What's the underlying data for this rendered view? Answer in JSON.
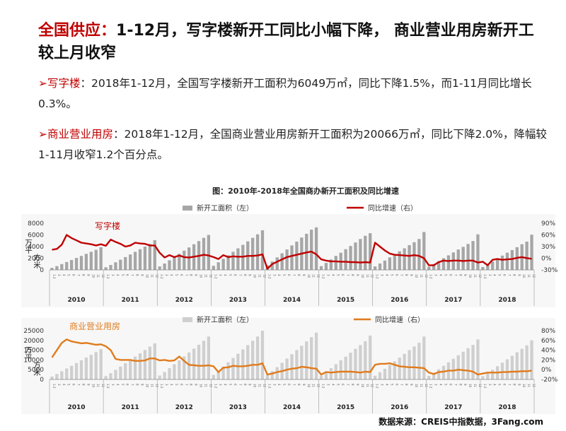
{
  "headline": {
    "part1": "全国供应：",
    "part2": "1-12月，写字楼新开工同比小幅下降，  商业营业用房新开工较上月收窄"
  },
  "para1": {
    "bullet": "➢",
    "lead": "写字楼",
    "text": "：2018年1-12月，全国写字楼新开工面积为6049万㎡，同比下降1.5%，而1-11月同比增长0.3%。"
  },
  "para2": {
    "bullet": "➢",
    "lead": "商业营业用房",
    "text": "：2018年1-12月，全国商业营业用房新开工面积为20066万㎡，同比下降2.0%，降幅较1-11月收窄1.2个百分点。"
  },
  "figure_title": "图：2010年-2018年全国商办新开工面积及同比增速",
  "source": "数据来源：CREIS中指数据，3Fang.com",
  "colors": {
    "red": "#c00000",
    "orange": "#e07b1c",
    "bar1": "#a6a6a6",
    "bar2": "#cfcfcf"
  },
  "chart_data": [
    {
      "type": "bar+line",
      "annotation": "写字楼",
      "ylabel": "万平方米",
      "y_left_ticks": [
        "8000",
        "6000",
        "4000",
        "2000",
        "0"
      ],
      "y_left_range": [
        0,
        8000
      ],
      "y_right_ticks": [
        "90%",
        "60%",
        "30%",
        "0%",
        "-30%"
      ],
      "y_right_range": [
        -30,
        90
      ],
      "legend": [
        "新开工面积（左）",
        "同比增速（右）"
      ],
      "years": [
        "2010",
        "2011",
        "2012",
        "2013",
        "2014",
        "2015",
        "2016",
        "2017",
        "2018"
      ],
      "month_labels": [
        "1-2",
        "3",
        "4",
        "5",
        "6",
        "7",
        "8",
        "9",
        "10",
        "11",
        "12"
      ],
      "series": [
        {
          "name": "新开工面积（左）",
          "kind": "bar",
          "values": [
            [
              350,
              650,
              1000,
              1350,
              1700,
              2050,
              2400,
              2750,
              3100,
              3450,
              3900
            ],
            [
              450,
              850,
              1300,
              1750,
              2200,
              2650,
              3100,
              3550,
              4000,
              4450,
              5100
            ],
            [
              600,
              1100,
              1650,
              2200,
              2750,
              3300,
              3850,
              4400,
              4950,
              5500,
              6000
            ],
            [
              700,
              1300,
              1900,
              2500,
              3100,
              3700,
              4300,
              4900,
              5500,
              6100,
              6800
            ],
            [
              800,
              1450,
              2150,
              2850,
              3500,
              4200,
              4850,
              5550,
              6200,
              6900,
              7300
            ],
            [
              650,
              1200,
              1800,
              2400,
              2950,
              3550,
              4100,
              4700,
              5300,
              5850,
              6300
            ],
            [
              600,
              1100,
              1600,
              2150,
              2650,
              3200,
              3700,
              4250,
              4750,
              5300,
              6500
            ],
            [
              550,
              1000,
              1500,
              2000,
              2500,
              3000,
              3500,
              3950,
              4450,
              4950,
              6100
            ],
            [
              500,
              950,
              1450,
              1950,
              2450,
              2950,
              3400,
              3900,
              4400,
              4850,
              6050
            ]
          ]
        },
        {
          "name": "同比增速（右）",
          "kind": "line",
          "values": [
            [
              22,
              24,
              35,
              60,
              52,
              46,
              40,
              38,
              36,
              33,
              36
            ],
            [
              32,
              48,
              42,
              37,
              30,
              33,
              40,
              38,
              37,
              33,
              33
            ],
            [
              14,
              2,
              8,
              3,
              7,
              3,
              2,
              4,
              6,
              9,
              7
            ],
            [
              3,
              -2,
              8,
              3,
              5,
              4,
              4,
              6,
              6,
              7,
              10
            ],
            [
              -27,
              -15,
              -9,
              -3,
              3,
              6,
              9,
              12,
              15,
              17,
              10
            ],
            [
              -3,
              -6,
              -8,
              -8,
              -9,
              -9,
              -10,
              -10,
              -11,
              -10,
              -11
            ],
            [
              40,
              30,
              20,
              12,
              9,
              8,
              7,
              6,
              8,
              6,
              0
            ],
            [
              -18,
              -18,
              -10,
              -6,
              -7,
              -6,
              -6,
              -7,
              -6,
              -6,
              -11
            ],
            [
              -9,
              -18,
              -4,
              -2,
              -4,
              -3,
              -2,
              1,
              3,
              0.3,
              -1.5
            ]
          ]
        }
      ]
    },
    {
      "type": "bar+line",
      "annotation": "商业营业用房",
      "ylabel": "万平方米",
      "y_left_ticks": [
        "25000",
        "20000",
        "15000",
        "10000",
        "5000",
        "0"
      ],
      "y_left_range": [
        0,
        25000
      ],
      "y_right_ticks": [
        "80%",
        "60%",
        "40%",
        "20%",
        "0%",
        "-20%"
      ],
      "y_right_range": [
        -20,
        80
      ],
      "legend": [
        "新开工面积（左）",
        "同比增速（右）"
      ],
      "years": [
        "2010",
        "2011",
        "2012",
        "2013",
        "2014",
        "2015",
        "2016",
        "2017",
        "2018"
      ],
      "month_labels": [
        "1-2",
        "3",
        "4",
        "5",
        "6",
        "7",
        "8",
        "9",
        "10",
        "11",
        "12"
      ],
      "series": [
        {
          "name": "新开工面积（左）",
          "kind": "bar",
          "values": [
            [
              1500,
              2800,
              4200,
              5600,
              7000,
              8400,
              9800,
              11200,
              12600,
              14000,
              15500
            ],
            [
              1700,
              3200,
              4900,
              6600,
              8300,
              10000,
              11700,
              13400,
              15100,
              16800,
              18500
            ],
            [
              2000,
              3800,
              5800,
              7800,
              9800,
              11800,
              13800,
              15800,
              17800,
              19800,
              22000
            ],
            [
              2300,
              4400,
              6600,
              8800,
              11000,
              13200,
              15400,
              17600,
              19800,
              22000,
              25000
            ],
            [
              2200,
              4200,
              6300,
              8500,
              10700,
              12900,
              15100,
              17300,
              19500,
              21700,
              24000
            ],
            [
              2000,
              3900,
              5800,
              7800,
              9800,
              11700,
              13700,
              15700,
              17600,
              19600,
              22500
            ],
            [
              1900,
              3700,
              5500,
              7400,
              9300,
              11200,
              13100,
              15000,
              16900,
              18800,
              22000
            ],
            [
              1800,
              3400,
              5200,
              7000,
              8800,
              10600,
              12400,
              14200,
              16000,
              17700,
              20500
            ],
            [
              1700,
              3300,
              5000,
              6800,
              8600,
              10300,
              12100,
              13900,
              15700,
              17500,
              20066
            ]
          ]
        },
        {
          "name": "同比增速（右）",
          "kind": "line",
          "values": [
            [
              25,
              40,
              55,
              62,
              58,
              56,
              54,
              55,
              53,
              51,
              52
            ],
            [
              48,
              40,
              22,
              20,
              20,
              20,
              18,
              18,
              19,
              23,
              23
            ],
            [
              19,
              20,
              18,
              19,
              27,
              18,
              10,
              9,
              8,
              8,
              9
            ],
            [
              7,
              -5,
              4,
              5,
              8,
              7,
              7,
              8,
              10,
              10,
              13
            ],
            [
              -10,
              -8,
              -5,
              -3,
              0,
              2,
              3,
              6,
              5,
              3,
              2
            ],
            [
              -10,
              -5,
              -6,
              -5,
              -4,
              -4,
              -4,
              -5,
              -6,
              -4,
              -5
            ],
            [
              10,
              12,
              12,
              13,
              10,
              7,
              6,
              5,
              5,
              4,
              3
            ],
            [
              -6,
              -9,
              -5,
              -4,
              -2,
              -2,
              0,
              -1,
              -2,
              -4,
              -10
            ],
            [
              -8,
              -6,
              -6,
              -6,
              -5,
              -5,
              -4,
              -4,
              -3,
              -3.2,
              -2
            ]
          ]
        }
      ]
    }
  ]
}
